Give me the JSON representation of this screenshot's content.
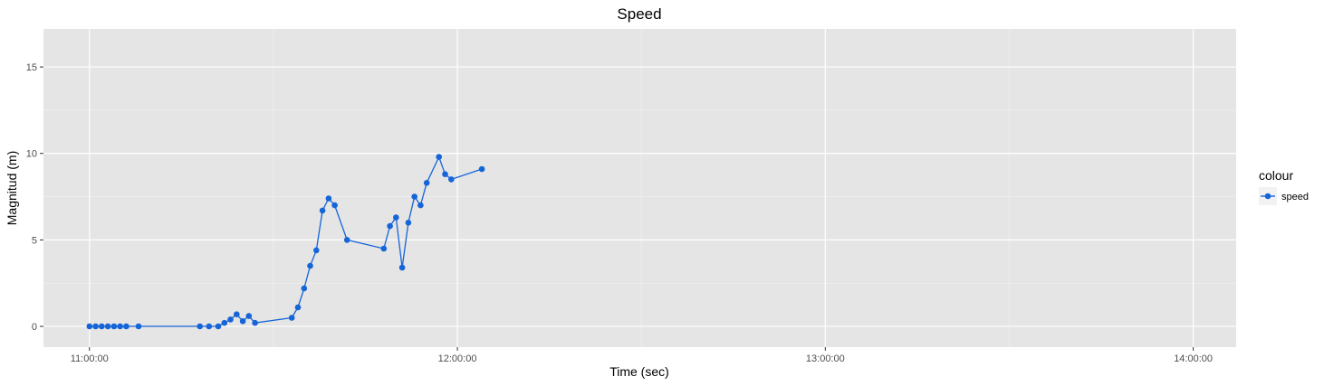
{
  "chart_data": {
    "type": "line",
    "title": "Speed",
    "xlabel": "Time (sec)",
    "ylabel": "Magnitud (m)",
    "x_unit": "time",
    "xlim": [
      "10:52:30",
      "14:07:00"
    ],
    "ylim": [
      -1.2,
      17.2
    ],
    "x_ticks": [
      "11:00:00",
      "12:00:00",
      "13:00:00",
      "14:00:00"
    ],
    "y_ticks": [
      0,
      5,
      10,
      15
    ],
    "grid": true,
    "legend": {
      "title": "colour",
      "position": "right",
      "entries": [
        "speed"
      ]
    },
    "colors": {
      "panel": "#e5e5e5",
      "grid": "#ffffff",
      "series": "#1565d8"
    },
    "series": [
      {
        "name": "speed",
        "points": [
          [
            "11:00:00",
            0
          ],
          [
            "11:01:00",
            0
          ],
          [
            "11:02:00",
            0
          ],
          [
            "11:03:00",
            0
          ],
          [
            "11:04:00",
            0
          ],
          [
            "11:05:00",
            0
          ],
          [
            "11:06:00",
            0
          ],
          [
            "11:08:00",
            0
          ],
          [
            "11:18:00",
            0
          ],
          [
            "11:19:30",
            0
          ],
          [
            "11:21:00",
            0
          ],
          [
            "11:22:00",
            0.2
          ],
          [
            "11:23:00",
            0.4
          ],
          [
            "11:24:00",
            0.7
          ],
          [
            "11:25:00",
            0.3
          ],
          [
            "11:26:00",
            0.6
          ],
          [
            "11:27:00",
            0.2
          ],
          [
            "11:33:00",
            0.5
          ],
          [
            "11:34:00",
            1.1
          ],
          [
            "11:35:00",
            2.2
          ],
          [
            "11:36:00",
            3.5
          ],
          [
            "11:37:00",
            4.4
          ],
          [
            "11:38:00",
            6.7
          ],
          [
            "11:39:00",
            7.4
          ],
          [
            "11:40:00",
            7.0
          ],
          [
            "11:42:00",
            5.0
          ],
          [
            "11:48:00",
            4.5
          ],
          [
            "11:49:00",
            5.8
          ],
          [
            "11:50:00",
            6.3
          ],
          [
            "11:51:00",
            3.4
          ],
          [
            "11:52:00",
            6.0
          ],
          [
            "11:53:00",
            7.5
          ],
          [
            "11:54:00",
            7.0
          ],
          [
            "11:55:00",
            8.3
          ],
          [
            "11:57:00",
            9.8
          ],
          [
            "11:58:00",
            8.8
          ],
          [
            "11:59:00",
            8.5
          ],
          [
            "11:64:00",
            9.1
          ]
        ]
      }
    ]
  }
}
